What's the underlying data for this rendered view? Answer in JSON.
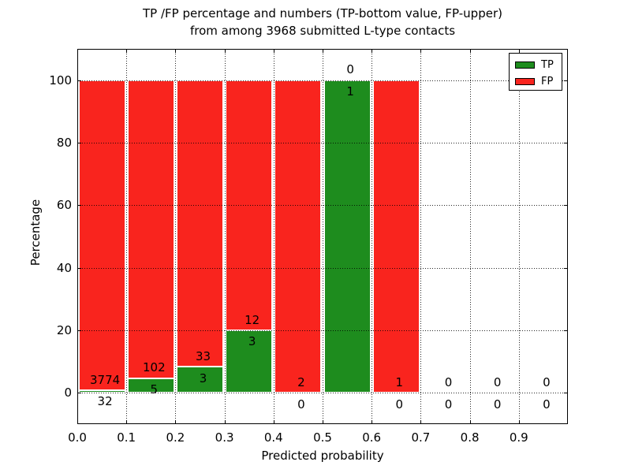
{
  "colors": {
    "tp_green": "#1e8c1e",
    "fp_red": "#f9241e",
    "grid": "#000000",
    "background": "#ffffff"
  },
  "chart_data": {
    "type": "bar",
    "stacked": true,
    "normalized": "percent",
    "title_line1": "TP /FP percentage and numbers (TP-bottom value, FP-upper)",
    "title_line2": "from among 3968 submitted L-type contacts",
    "xlabel": "Predicted probability",
    "ylabel": "Percentage",
    "xlim": [
      0.0,
      1.0
    ],
    "ylim": [
      -10,
      110
    ],
    "bin_width": 0.1,
    "xticks": [
      "0.0",
      "0.1",
      "0.2",
      "0.3",
      "0.4",
      "0.5",
      "0.6",
      "0.7",
      "0.8",
      "0.9"
    ],
    "yticks": [
      0,
      20,
      40,
      60,
      80,
      100
    ],
    "grid": true,
    "grid_style": "dotted",
    "categories": [
      "0.0-0.1",
      "0.1-0.2",
      "0.2-0.3",
      "0.3-0.4",
      "0.4-0.5",
      "0.5-0.6",
      "0.6-0.7",
      "0.7-0.8",
      "0.8-0.9",
      "0.9-1.0"
    ],
    "series": [
      {
        "name": "TP",
        "color": "#1e8c1e",
        "values": [
          32,
          5,
          3,
          3,
          0,
          1,
          0,
          0,
          0,
          0
        ]
      },
      {
        "name": "FP",
        "color": "#f9241e",
        "values": [
          3774,
          102,
          33,
          12,
          2,
          0,
          1,
          0,
          0,
          0
        ]
      }
    ],
    "legend": {
      "position": "upper right",
      "entries": [
        {
          "label": "TP",
          "color": "#1e8c1e"
        },
        {
          "label": "FP",
          "color": "#f9241e"
        }
      ]
    }
  }
}
